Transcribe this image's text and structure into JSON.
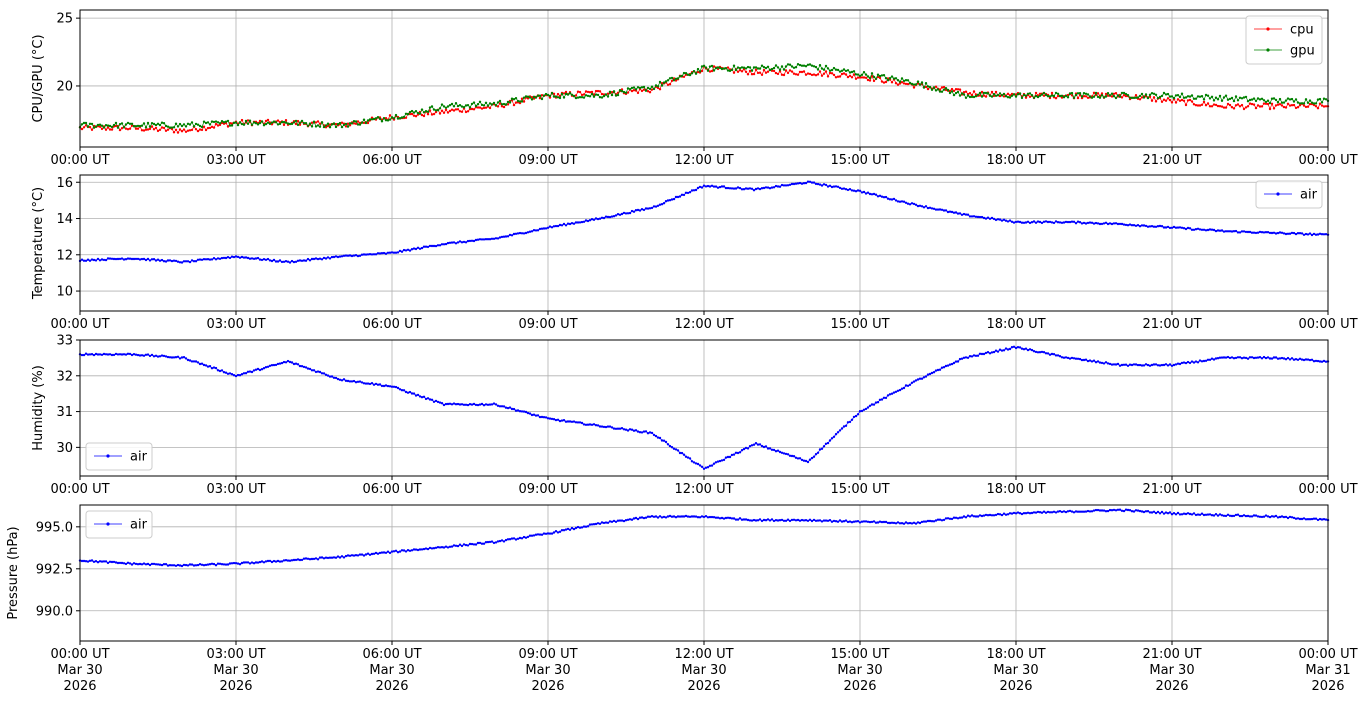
{
  "x_ticks": [
    "00:00 UT",
    "03:00 UT",
    "06:00 UT",
    "09:00 UT",
    "12:00 UT",
    "15:00 UT",
    "18:00 UT",
    "21:00 UT",
    "00:00 UT"
  ],
  "x_ticks_bottom": [
    [
      "00:00 UT",
      "Mar 30",
      "2026"
    ],
    [
      "03:00 UT",
      "Mar 30",
      "2026"
    ],
    [
      "06:00 UT",
      "Mar 30",
      "2026"
    ],
    [
      "09:00 UT",
      "Mar 30",
      "2026"
    ],
    [
      "12:00 UT",
      "Mar 30",
      "2026"
    ],
    [
      "15:00 UT",
      "Mar 30",
      "2026"
    ],
    [
      "18:00 UT",
      "Mar 30",
      "2026"
    ],
    [
      "21:00 UT",
      "Mar 30",
      "2026"
    ],
    [
      "00:00 UT",
      "Mar 31",
      "2026"
    ]
  ],
  "chart_data": [
    {
      "type": "line",
      "ylabel": "CPU/GPU (°C)",
      "ylim": [
        15.5,
        25.6
      ],
      "yticks": [
        20,
        25
      ],
      "grid": true,
      "legend": "top-right",
      "x": [
        "2026-03-30T00:00Z",
        "2026-03-30T01:00Z",
        "2026-03-30T02:00Z",
        "2026-03-30T03:00Z",
        "2026-03-30T04:00Z",
        "2026-03-30T05:00Z",
        "2026-03-30T06:00Z",
        "2026-03-30T07:00Z",
        "2026-03-30T08:00Z",
        "2026-03-30T09:00Z",
        "2026-03-30T10:00Z",
        "2026-03-30T11:00Z",
        "2026-03-30T12:00Z",
        "2026-03-30T13:00Z",
        "2026-03-30T14:00Z",
        "2026-03-30T15:00Z",
        "2026-03-30T16:00Z",
        "2026-03-30T17:00Z",
        "2026-03-30T18:00Z",
        "2026-03-30T19:00Z",
        "2026-03-30T20:00Z",
        "2026-03-30T21:00Z",
        "2026-03-30T22:00Z",
        "2026-03-30T23:00Z",
        "2026-03-31T00:00Z"
      ],
      "series": [
        {
          "name": "cpu",
          "color": "#ff0000",
          "values": [
            16.9,
            16.9,
            16.7,
            17.3,
            17.3,
            17.1,
            17.7,
            18.1,
            18.5,
            19.3,
            19.5,
            19.7,
            21.3,
            21.0,
            21.0,
            20.7,
            20.1,
            19.5,
            19.3,
            19.3,
            19.3,
            18.9,
            18.5,
            18.5,
            18.5
          ]
        },
        {
          "name": "gpu",
          "color": "#008000",
          "values": [
            17.1,
            17.1,
            17.1,
            17.3,
            17.3,
            17.1,
            17.7,
            18.5,
            18.7,
            19.3,
            19.3,
            19.9,
            21.3,
            21.3,
            21.5,
            20.9,
            20.3,
            19.3,
            19.3,
            19.3,
            19.3,
            19.3,
            19.1,
            18.9,
            18.9
          ]
        }
      ]
    },
    {
      "type": "line",
      "ylabel": "Temperature (°C)",
      "ylim": [
        8.9,
        16.4
      ],
      "yticks": [
        10,
        12,
        14,
        16
      ],
      "grid": true,
      "legend": "top-right",
      "x": [
        "2026-03-30T00:00Z",
        "2026-03-30T01:00Z",
        "2026-03-30T02:00Z",
        "2026-03-30T03:00Z",
        "2026-03-30T04:00Z",
        "2026-03-30T05:00Z",
        "2026-03-30T06:00Z",
        "2026-03-30T07:00Z",
        "2026-03-30T08:00Z",
        "2026-03-30T09:00Z",
        "2026-03-30T10:00Z",
        "2026-03-30T11:00Z",
        "2026-03-30T12:00Z",
        "2026-03-30T13:00Z",
        "2026-03-30T14:00Z",
        "2026-03-30T15:00Z",
        "2026-03-30T16:00Z",
        "2026-03-30T17:00Z",
        "2026-03-30T18:00Z",
        "2026-03-30T19:00Z",
        "2026-03-30T20:00Z",
        "2026-03-30T21:00Z",
        "2026-03-30T22:00Z",
        "2026-03-30T23:00Z",
        "2026-03-31T00:00Z"
      ],
      "series": [
        {
          "name": "air",
          "color": "#0000ff",
          "values": [
            11.7,
            11.8,
            11.6,
            11.9,
            11.6,
            11.9,
            12.1,
            12.6,
            12.9,
            13.5,
            14.0,
            14.6,
            15.8,
            15.6,
            16.0,
            15.5,
            14.8,
            14.2,
            13.8,
            13.8,
            13.7,
            13.5,
            13.3,
            13.2,
            13.1
          ]
        }
      ]
    },
    {
      "type": "line",
      "ylabel": "Humidity (%)",
      "ylim": [
        29.2,
        33.0
      ],
      "yticks": [
        30,
        31,
        32,
        33
      ],
      "grid": true,
      "legend": "bottom-left",
      "x": [
        "2026-03-30T00:00Z",
        "2026-03-30T01:00Z",
        "2026-03-30T02:00Z",
        "2026-03-30T03:00Z",
        "2026-03-30T04:00Z",
        "2026-03-30T05:00Z",
        "2026-03-30T06:00Z",
        "2026-03-30T07:00Z",
        "2026-03-30T08:00Z",
        "2026-03-30T09:00Z",
        "2026-03-30T10:00Z",
        "2026-03-30T11:00Z",
        "2026-03-30T12:00Z",
        "2026-03-30T13:00Z",
        "2026-03-30T14:00Z",
        "2026-03-30T15:00Z",
        "2026-03-30T16:00Z",
        "2026-03-30T17:00Z",
        "2026-03-30T18:00Z",
        "2026-03-30T19:00Z",
        "2026-03-30T20:00Z",
        "2026-03-30T21:00Z",
        "2026-03-30T22:00Z",
        "2026-03-30T23:00Z",
        "2026-03-31T00:00Z"
      ],
      "series": [
        {
          "name": "air",
          "color": "#0000ff",
          "values": [
            32.6,
            32.6,
            32.5,
            32.0,
            32.4,
            31.9,
            31.7,
            31.2,
            31.2,
            30.8,
            30.6,
            30.4,
            29.4,
            30.1,
            29.6,
            31.0,
            31.8,
            32.5,
            32.8,
            32.5,
            32.3,
            32.3,
            32.5,
            32.5,
            32.4
          ]
        }
      ]
    },
    {
      "type": "line",
      "ylabel": "Pressure (hPa)",
      "ylim": [
        988.2,
        996.3
      ],
      "yticks": [
        990.0,
        992.5,
        995.0
      ],
      "grid": true,
      "legend": "top-left",
      "x": [
        "2026-03-30T00:00Z",
        "2026-03-30T01:00Z",
        "2026-03-30T02:00Z",
        "2026-03-30T03:00Z",
        "2026-03-30T04:00Z",
        "2026-03-30T05:00Z",
        "2026-03-30T06:00Z",
        "2026-03-30T07:00Z",
        "2026-03-30T08:00Z",
        "2026-03-30T09:00Z",
        "2026-03-30T10:00Z",
        "2026-03-30T11:00Z",
        "2026-03-30T12:00Z",
        "2026-03-30T13:00Z",
        "2026-03-30T14:00Z",
        "2026-03-30T15:00Z",
        "2026-03-30T16:00Z",
        "2026-03-30T17:00Z",
        "2026-03-30T18:00Z",
        "2026-03-30T19:00Z",
        "2026-03-30T20:00Z",
        "2026-03-30T21:00Z",
        "2026-03-30T22:00Z",
        "2026-03-30T23:00Z",
        "2026-03-31T00:00Z"
      ],
      "series": [
        {
          "name": "air",
          "color": "#0000ff",
          "values": [
            993.0,
            992.8,
            992.7,
            992.8,
            993.0,
            993.2,
            993.5,
            993.8,
            994.1,
            994.6,
            995.2,
            995.6,
            995.6,
            995.4,
            995.4,
            995.3,
            995.2,
            995.6,
            995.8,
            995.9,
            996.0,
            995.8,
            995.7,
            995.6,
            995.4
          ]
        }
      ]
    }
  ]
}
